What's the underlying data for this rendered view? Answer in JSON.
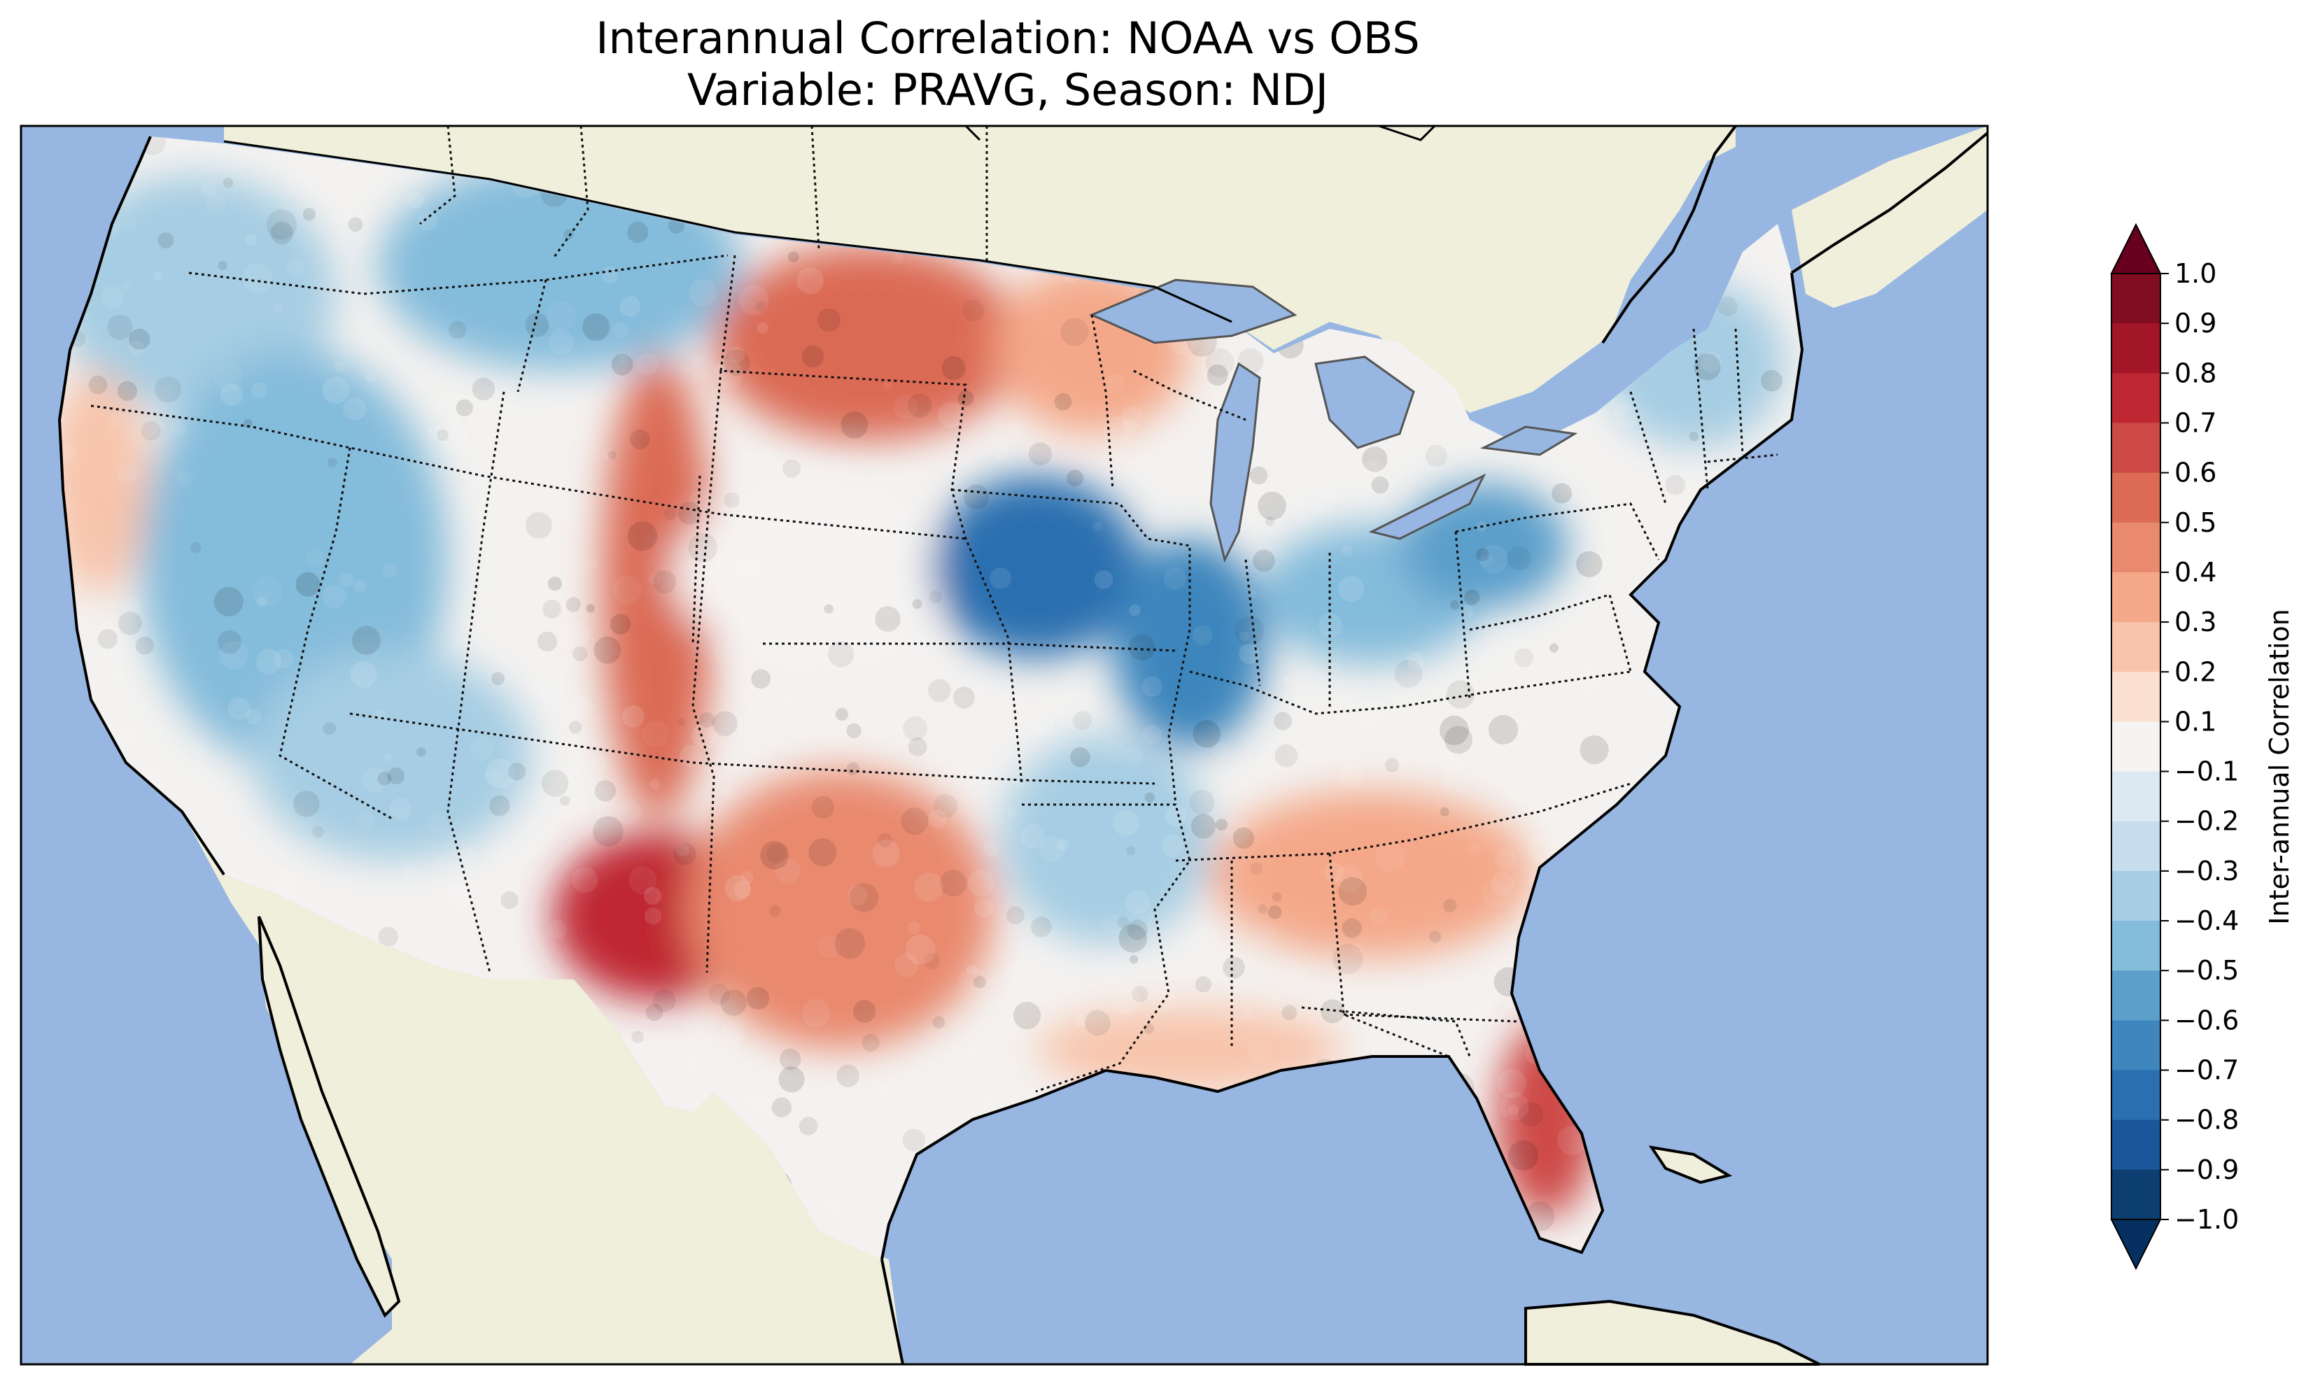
{
  "figure": {
    "title_line1": "Interannual Correlation: NOAA vs OBS",
    "title_line2": "Variable: PRAVG, Season: NDJ"
  },
  "map": {
    "projection": "Lambert conformal, contiguous United States",
    "ocean_color": "#97b6e1",
    "land_color": "#efefdb",
    "border_style": "dotted",
    "regions": [
      {
        "name": "Pacific Northwest",
        "value": -0.35
      },
      {
        "name": "Northern Rockies",
        "value": -0.45
      },
      {
        "name": "Great Basin",
        "value": -0.4
      },
      {
        "name": "Southwest",
        "value": -0.35
      },
      {
        "name": "California coast",
        "value": 0.25
      },
      {
        "name": "Front Range (Colorado/Wyoming)",
        "value": 0.55
      },
      {
        "name": "Dakotas",
        "value": 0.6
      },
      {
        "name": "Minnesota",
        "value": 0.4
      },
      {
        "name": "Central Plains",
        "value": 0.05
      },
      {
        "name": "West Texas",
        "value": 0.75
      },
      {
        "name": "Central Texas",
        "value": 0.45
      },
      {
        "name": "Iowa/Missouri",
        "value": -0.7
      },
      {
        "name": "Illinois",
        "value": -0.6
      },
      {
        "name": "Ohio Valley",
        "value": -0.45
      },
      {
        "name": "Appalachians",
        "value": -0.55
      },
      {
        "name": "New England",
        "value": -0.35
      },
      {
        "name": "Lower Mississippi",
        "value": -0.35
      },
      {
        "name": "Southeast/Georgia",
        "value": 0.35
      },
      {
        "name": "Gulf coast",
        "value": 0.3
      },
      {
        "name": "Florida",
        "value": 0.65
      }
    ]
  },
  "colorbar": {
    "label": "Inter-annual Correlation",
    "min": -1.0,
    "max": 1.0,
    "extend": "both",
    "ticks": [
      "1.0",
      "0.9",
      "0.8",
      "0.7",
      "0.6",
      "0.5",
      "0.4",
      "0.3",
      "0.2",
      "0.1",
      "−0.1",
      "−0.2",
      "−0.3",
      "−0.4",
      "−0.5",
      "−0.6",
      "−0.7",
      "−0.8",
      "−0.9",
      "−1.0"
    ],
    "colors_top_to_bottom": [
      "#800d22",
      "#a31628",
      "#bf2833",
      "#cd4a47",
      "#db6b55",
      "#e9896e",
      "#f4a889",
      "#f8c4ab",
      "#fbdfd0",
      "#f6f4f3",
      "#dde9f2",
      "#c5dded",
      "#a6cde3",
      "#84bcdb",
      "#5c9fcb",
      "#3e86bd",
      "#2a6fb0",
      "#1a5699",
      "#0d3e72"
    ],
    "top_arrow_color": "#67001f",
    "bottom_arrow_color": "#053061"
  }
}
